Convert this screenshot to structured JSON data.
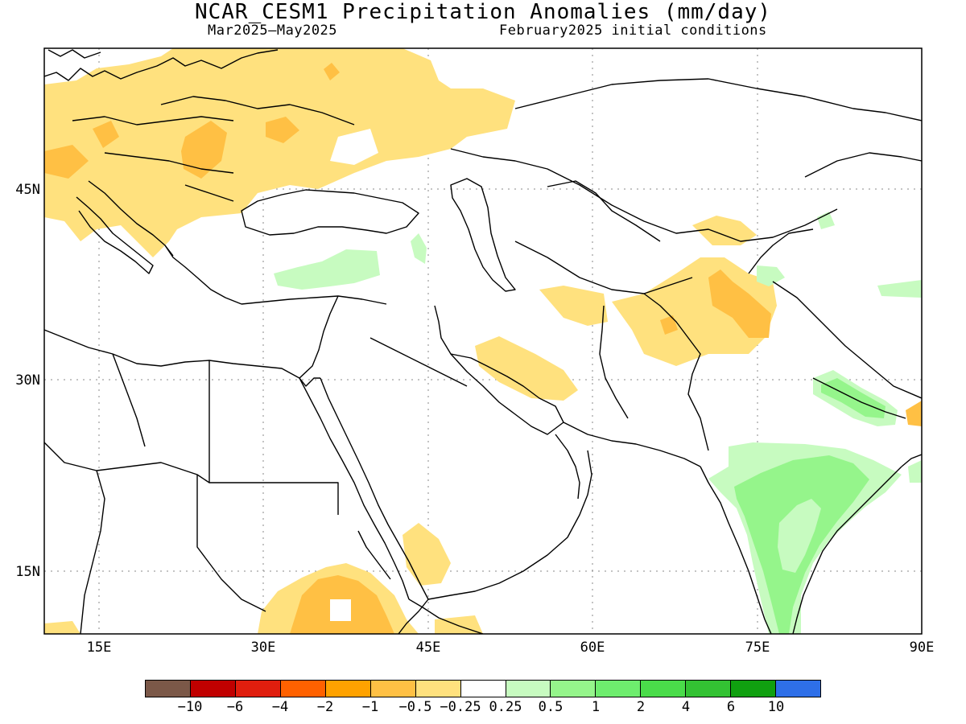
{
  "header": {
    "title": "NCAR_CESM1 Precipitation Anomalies (mm/day)",
    "period": "Mar2025–May2025",
    "init": "February2025 initial conditions"
  },
  "map": {
    "lon_range": [
      10,
      90
    ],
    "lat_range": [
      10,
      55
    ],
    "lon_ticks": [
      "15E",
      "30E",
      "45E",
      "60E",
      "75E",
      "90E"
    ],
    "lat_ticks": [
      "45N",
      "30N",
      "15N"
    ],
    "anomaly_regions": [
      {
        "name": "europe-dry",
        "category": "-0.5"
      },
      {
        "name": "ukraine-dry",
        "category": "-0.5"
      },
      {
        "name": "balkans-dry",
        "category": "-0.5"
      },
      {
        "name": "iran-dry",
        "category": "-0.5"
      },
      {
        "name": "afghanistan-pakistan-dry",
        "category": "-0.5"
      },
      {
        "name": "karakoram-dry",
        "category": "-1"
      },
      {
        "name": "ethiopia-dry",
        "category": "-0.5"
      },
      {
        "name": "ethiopia-core-dry",
        "category": "-1"
      },
      {
        "name": "yemen-dry",
        "category": "-0.5"
      },
      {
        "name": "turkey-wet",
        "category": "0.25"
      },
      {
        "name": "himalaya-wet",
        "category": "0.5"
      },
      {
        "name": "india-wet",
        "category": "0.25"
      },
      {
        "name": "india-core-wet",
        "category": "1"
      }
    ]
  },
  "colorbar": {
    "colors": [
      "#7b5848",
      "#c00000",
      "#e01e0e",
      "#ff6100",
      "#ffa200",
      "#ffc044",
      "#ffe17e",
      "#ffffff",
      "#c7fbc0",
      "#95f58b",
      "#6eed6e",
      "#4adc4a",
      "#33c233",
      "#10a010",
      "#2e6fe8"
    ],
    "labels": [
      "−10",
      "−6",
      "−4",
      "−2",
      "−1",
      "−0.5",
      "−0.25",
      "0.25",
      "0.5",
      "1",
      "2",
      "4",
      "6",
      "10"
    ]
  }
}
